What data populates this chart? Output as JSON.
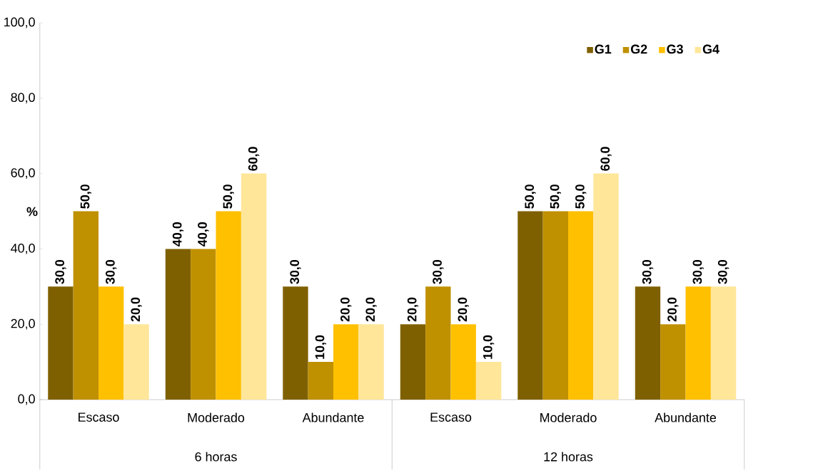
{
  "chart_data": {
    "type": "bar",
    "ylabel": "%",
    "categories": [
      "Escaso",
      "Moderado",
      "Abundante",
      "Escaso",
      "Moderado",
      "Abundante"
    ],
    "annotations": [
      "6 horas",
      "12 horas"
    ],
    "series": [
      {
        "name": "G1",
        "color": "#7f6000",
        "values": [
          30,
          40,
          30,
          20,
          50,
          30
        ],
        "value_labels": [
          "30,0",
          "40,0",
          "30,0",
          "20,0",
          "50,0",
          "30,0"
        ]
      },
      {
        "name": "G2",
        "color": "#bf9000",
        "values": [
          50,
          40,
          10,
          30,
          50,
          20
        ],
        "value_labels": [
          "50,0",
          "40,0",
          "10,0",
          "30,0",
          "50,0",
          "20,0"
        ]
      },
      {
        "name": "G3",
        "color": "#ffc000",
        "values": [
          30,
          50,
          20,
          20,
          50,
          30
        ],
        "value_labels": [
          "30,0",
          "50,0",
          "20,0",
          "20,0",
          "50,0",
          "30,0"
        ]
      },
      {
        "name": "G4",
        "color": "#ffe699",
        "values": [
          20,
          60,
          20,
          10,
          60,
          30
        ],
        "value_labels": [
          "20,0",
          "60,0",
          "20,0",
          "10,0",
          "60,0",
          "30,0"
        ]
      }
    ],
    "ylim": [
      0,
      100
    ],
    "yticks": [
      {
        "value": 0,
        "label": "0,0"
      },
      {
        "value": 20,
        "label": "20,0"
      },
      {
        "value": 40,
        "label": "40,0"
      },
      {
        "value": 60,
        "label": "60,0"
      },
      {
        "value": 80,
        "label": "80,0"
      },
      {
        "value": 100,
        "label": "100,0"
      }
    ],
    "legend": "top right"
  }
}
